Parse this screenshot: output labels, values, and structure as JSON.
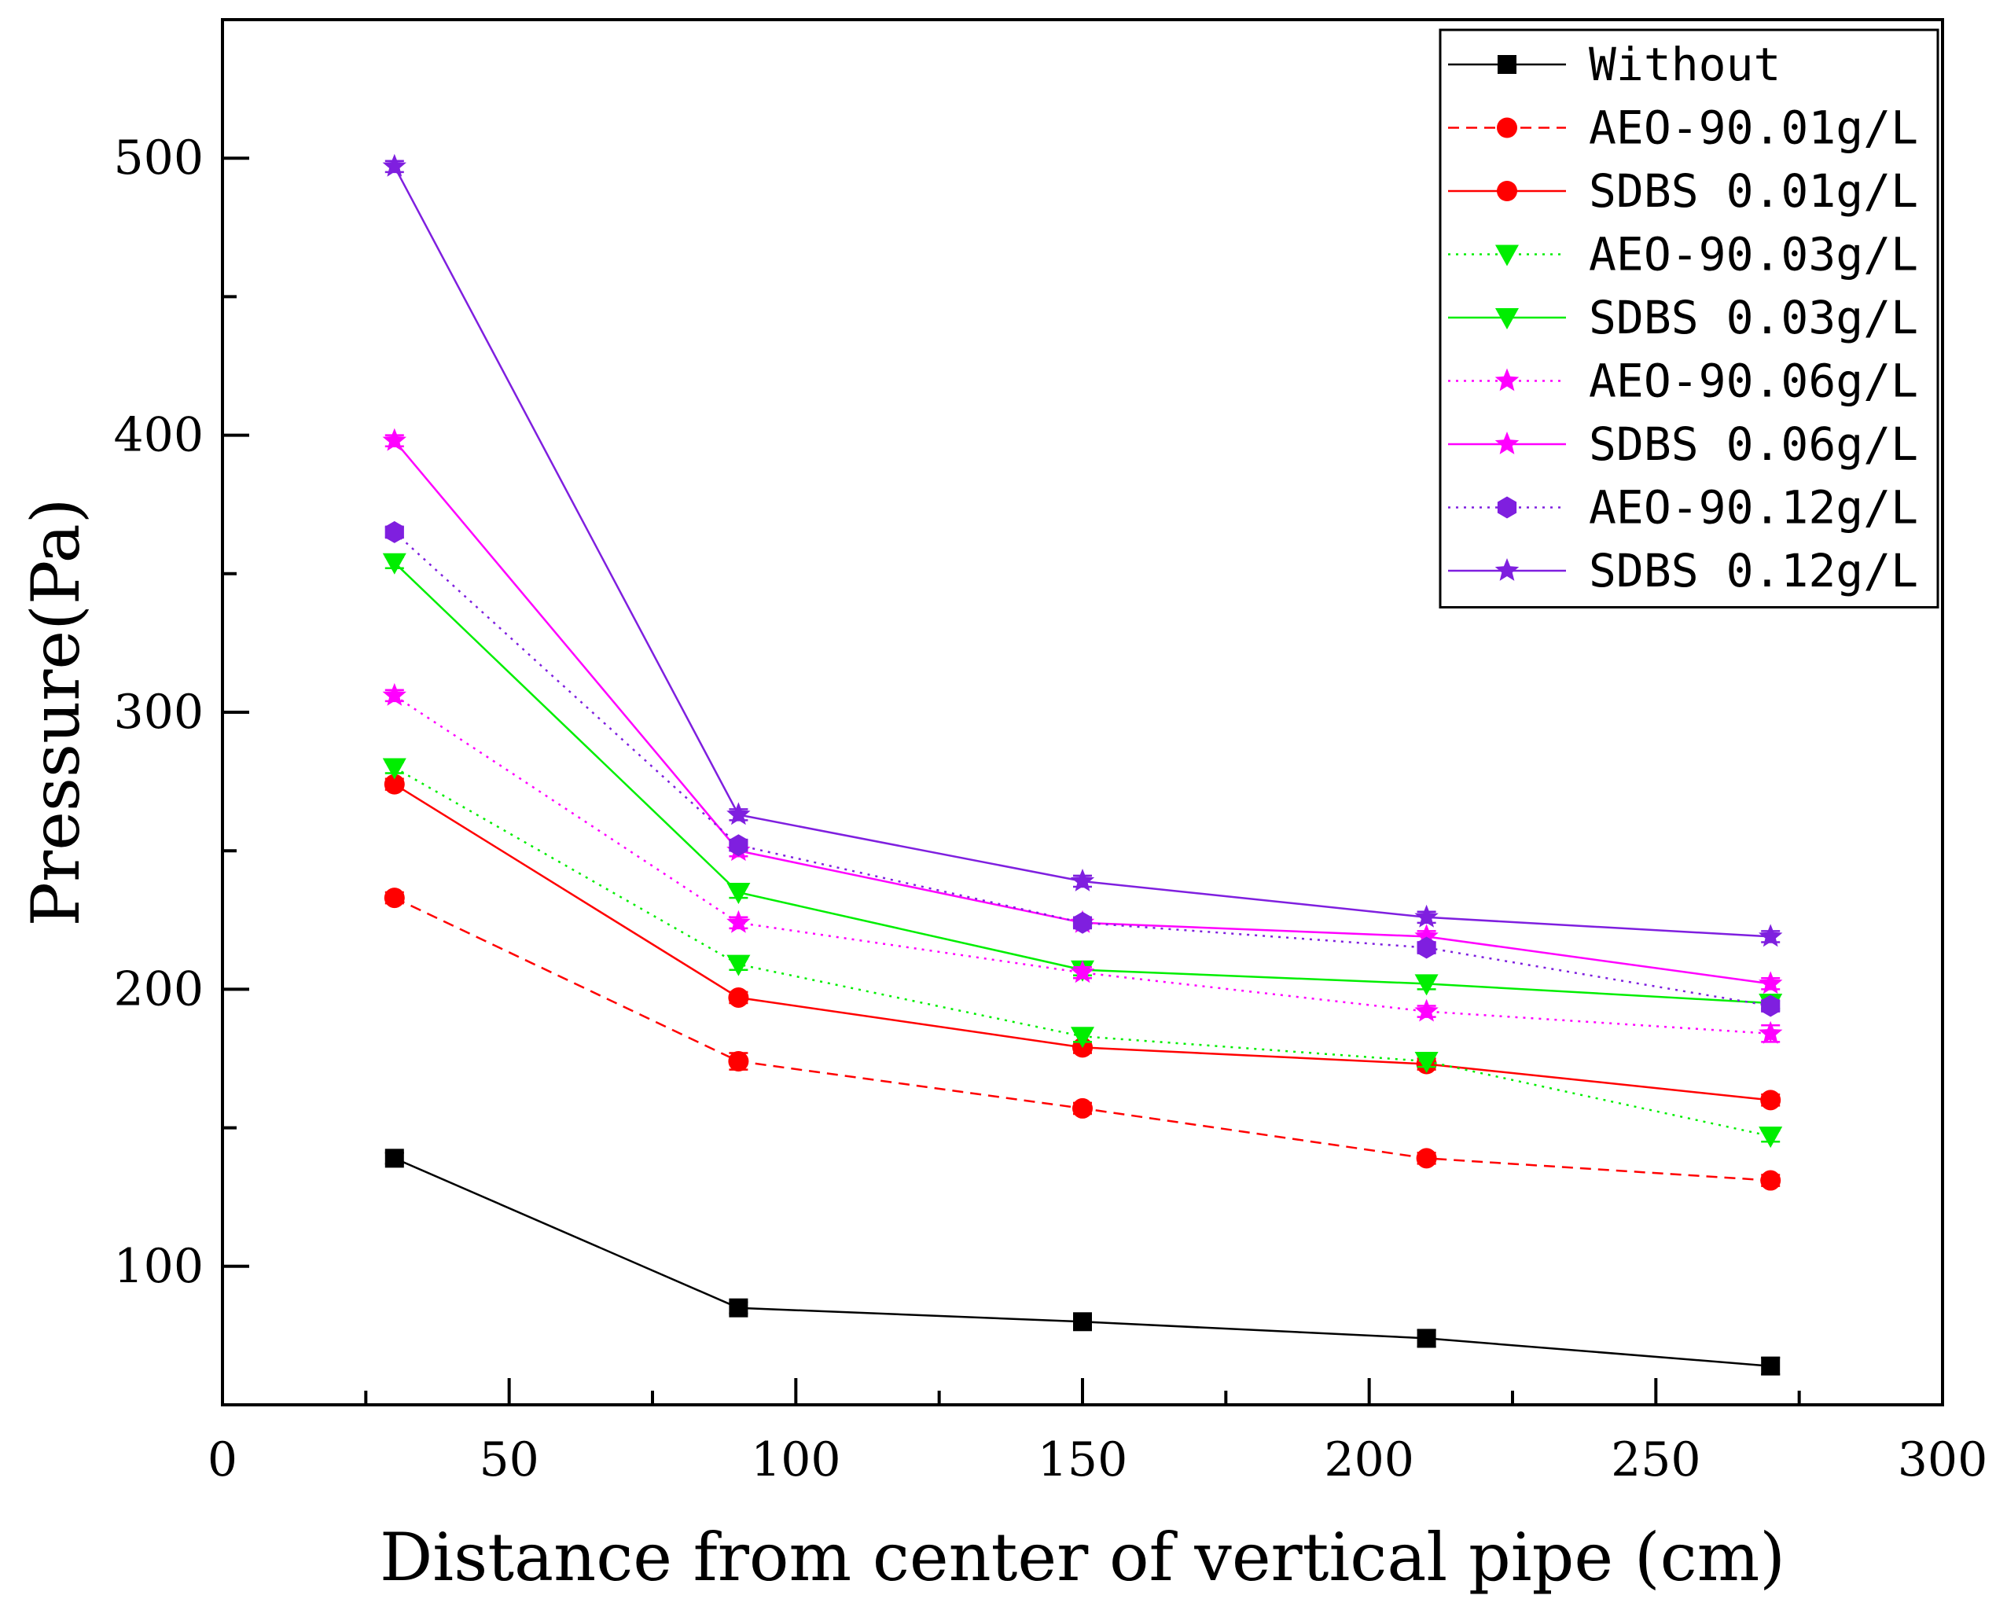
{
  "chart_data": {
    "type": "line",
    "title": "",
    "xlabel": "Distance from center of vertical pipe (cm)",
    "ylabel": "Pressure(Pa)",
    "xlim": [
      0,
      300
    ],
    "ylim": [
      50,
      550
    ],
    "xticks": [
      0,
      50,
      100,
      150,
      200,
      250,
      300
    ],
    "yticks": [
      100,
      200,
      300,
      400,
      500
    ],
    "grid": false,
    "legend_position": "top-right",
    "x": [
      30,
      90,
      150,
      210,
      270
    ],
    "series": [
      {
        "name": "Without",
        "values": [
          139,
          85,
          80,
          74,
          64
        ],
        "errors": [
          2,
          2,
          2,
          3,
          3
        ],
        "color": "#000000",
        "dash": "solid",
        "marker": "square"
      },
      {
        "name": "AEO-90.01g/L",
        "values": [
          233,
          174,
          157,
          139,
          131
        ],
        "errors": [
          2,
          3,
          2,
          2,
          2
        ],
        "color": "#ff0000",
        "dash": "dashed",
        "marker": "circle"
      },
      {
        "name": "SDBS 0.01g/L",
        "values": [
          274,
          197,
          179,
          173,
          160
        ],
        "errors": [
          2,
          2,
          2,
          2,
          2
        ],
        "color": "#ff0000",
        "dash": "solid",
        "marker": "circle"
      },
      {
        "name": "AEO-90.03g/L",
        "values": [
          280,
          209,
          183,
          174,
          147
        ],
        "errors": [
          2,
          2,
          2,
          2,
          2
        ],
        "color": "#00ee00",
        "dash": "dotted",
        "marker": "triangle-down"
      },
      {
        "name": "SDBS 0.03g/L",
        "values": [
          354,
          235,
          207,
          202,
          195
        ],
        "errors": [
          2,
          2,
          2,
          2,
          2
        ],
        "color": "#00ee00",
        "dash": "solid",
        "marker": "triangle-down"
      },
      {
        "name": "AEO-90.06g/L",
        "values": [
          306,
          224,
          206,
          192,
          184
        ],
        "errors": [
          2,
          2,
          2,
          2,
          3
        ],
        "color": "#ff00ff",
        "dash": "dotted",
        "marker": "star"
      },
      {
        "name": "SDBS 0.06g/L",
        "values": [
          398,
          250,
          224,
          219,
          202
        ],
        "errors": [
          2,
          2,
          2,
          2,
          2
        ],
        "color": "#ff00ff",
        "dash": "solid",
        "marker": "star"
      },
      {
        "name": "AEO-90.12g/L",
        "values": [
          365,
          252,
          224,
          215,
          194
        ],
        "errors": [
          2,
          2,
          2,
          2,
          2
        ],
        "color": "#7f1fdf",
        "dash": "dotted",
        "marker": "hexagon"
      },
      {
        "name": "SDBS 0.12g/L",
        "values": [
          497,
          263,
          239,
          226,
          219
        ],
        "errors": [
          2,
          2,
          2,
          2,
          2
        ],
        "color": "#7f1fdf",
        "dash": "solid",
        "marker": "star"
      }
    ]
  }
}
